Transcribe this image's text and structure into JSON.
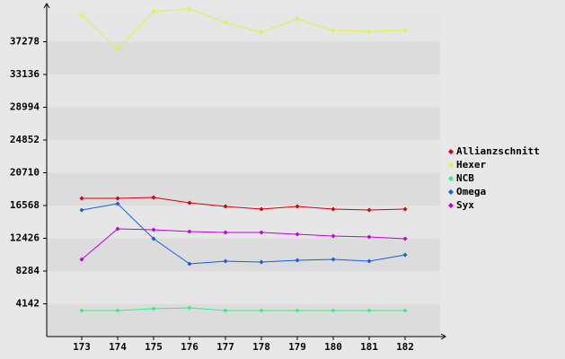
{
  "chart_data": {
    "type": "line",
    "categories": [
      "173",
      "174",
      "175",
      "176",
      "177",
      "178",
      "179",
      "180",
      "181",
      "182"
    ],
    "series": [
      {
        "name": "Allianzschnitt",
        "color": "#d80000",
        "values": [
          17476,
          17476,
          17590,
          16909,
          16455,
          16114,
          16455,
          16114,
          16000,
          16114
        ]
      },
      {
        "name": "Hexer",
        "color": "#e4f040",
        "values": [
          40626,
          36314,
          41080,
          41420,
          39718,
          38470,
          40172,
          38697,
          38583,
          38697
        ]
      },
      {
        "name": "NCB",
        "color": "#30f080",
        "values": [
          3291,
          3291,
          3518,
          3631,
          3291,
          3291,
          3291,
          3291,
          3291,
          3291
        ]
      },
      {
        "name": "Omega",
        "color": "#1060e0",
        "values": [
          16000,
          16795,
          12369,
          9192,
          9532,
          9419,
          9646,
          9759,
          9532,
          10327
        ]
      },
      {
        "name": "Syx",
        "color": "#c000e0",
        "values": [
          9759,
          13618,
          13504,
          13277,
          13164,
          13164,
          12937,
          12710,
          12597,
          12369
        ]
      }
    ],
    "ylim": [
      0,
      41420
    ],
    "yticks": [
      4142,
      8284,
      12426,
      16568,
      20710,
      24852,
      28994,
      33136,
      37278
    ],
    "grid": true,
    "legend": "right"
  }
}
